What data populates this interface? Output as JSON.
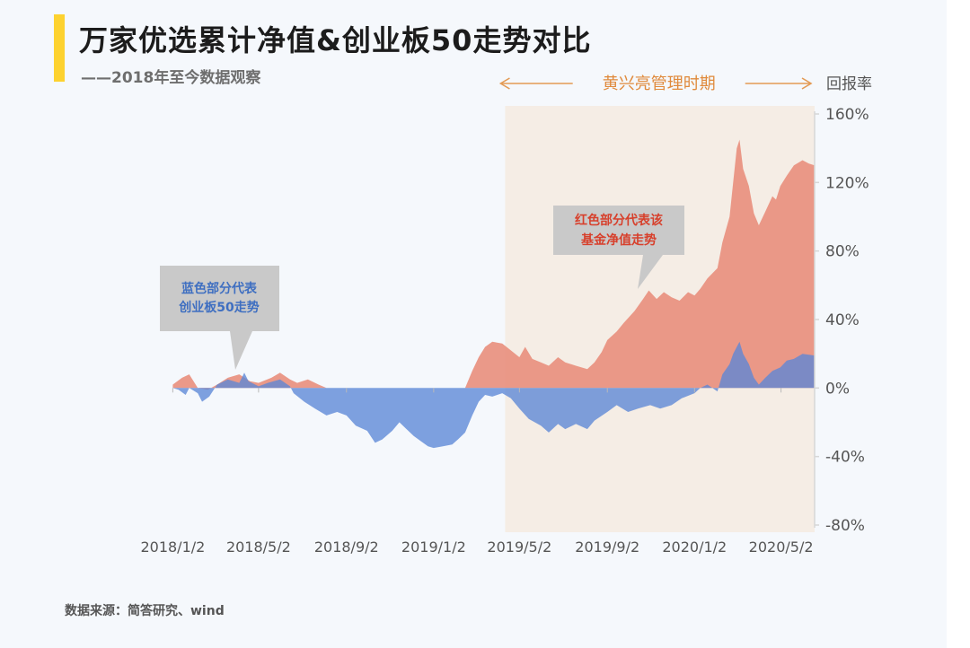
{
  "header": {
    "title": "万家优选累计净值&创业板50走势对比",
    "subtitle": "——2018年至今数据观察"
  },
  "footer": {
    "source": "数据来源：简答研究、wind"
  },
  "chart_data": {
    "type": "area",
    "ylabel": "回报率",
    "ylim": [
      -80,
      160
    ],
    "yticks": [
      160,
      120,
      80,
      40,
      0,
      -40,
      -80
    ],
    "ytick_labels": [
      "160%",
      "120%",
      "80%",
      "40%",
      "0%",
      "-40%",
      "-80%"
    ],
    "xlim": [
      "2017-12-30",
      "2020-06-18"
    ],
    "xtick_dates": [
      "2018-01-02",
      "2018-05-02",
      "2018-09-02",
      "2019-01-02",
      "2019-05-02",
      "2019-09-02",
      "2020-01-02",
      "2020-05-02"
    ],
    "xtick_labels": [
      "2018/1/2",
      "2018/5/2",
      "2018/9/2",
      "2019/1/2",
      "2019/5/2",
      "2019/9/2",
      "2020/1/2",
      "2020/5/2"
    ],
    "grid": false,
    "period_label": "黄兴亮管理时期",
    "highlight_period": [
      "2019-04-12",
      "2020-06-18"
    ],
    "annotations": [
      {
        "text": [
          "红色部分代表该",
          "基金净值走势"
        ],
        "color": "#d7402c"
      },
      {
        "text": [
          "蓝色部分代表",
          "创业板50走势"
        ],
        "color": "#3f6fc1"
      }
    ],
    "series": [
      {
        "color": "#e8907f",
        "points": [
          [
            "2018-01-02",
            2
          ],
          [
            "2018-01-15",
            6
          ],
          [
            "2018-01-25",
            8
          ],
          [
            "2018-02-06",
            0
          ],
          [
            "2018-02-20",
            -1
          ],
          [
            "2018-03-05",
            2
          ],
          [
            "2018-03-20",
            6
          ],
          [
            "2018-04-05",
            8
          ],
          [
            "2018-04-20",
            4
          ],
          [
            "2018-05-02",
            3
          ],
          [
            "2018-05-20",
            6
          ],
          [
            "2018-06-01",
            9
          ],
          [
            "2018-06-15",
            5
          ],
          [
            "2018-06-25",
            3
          ],
          [
            "2018-07-10",
            5
          ],
          [
            "2018-07-25",
            2
          ],
          [
            "2018-08-05",
            0
          ],
          [
            "2019-02-15",
            0
          ],
          [
            "2019-02-25",
            10
          ],
          [
            "2019-03-06",
            18
          ],
          [
            "2019-03-15",
            24
          ],
          [
            "2019-03-25",
            27
          ],
          [
            "2019-04-08",
            26
          ],
          [
            "2019-04-20",
            22
          ],
          [
            "2019-05-02",
            18
          ],
          [
            "2019-05-10",
            24
          ],
          [
            "2019-05-20",
            17
          ],
          [
            "2019-06-01",
            15
          ],
          [
            "2019-06-12",
            13
          ],
          [
            "2019-06-25",
            18
          ],
          [
            "2019-07-05",
            15
          ],
          [
            "2019-07-20",
            13
          ],
          [
            "2019-08-05",
            11
          ],
          [
            "2019-08-15",
            15
          ],
          [
            "2019-08-25",
            21
          ],
          [
            "2019-09-02",
            28
          ],
          [
            "2019-09-15",
            33
          ],
          [
            "2019-09-25",
            38
          ],
          [
            "2019-10-10",
            45
          ],
          [
            "2019-10-22",
            52
          ],
          [
            "2019-10-30",
            57
          ],
          [
            "2019-11-10",
            52
          ],
          [
            "2019-11-20",
            56
          ],
          [
            "2019-12-01",
            53
          ],
          [
            "2019-12-12",
            51
          ],
          [
            "2019-12-24",
            56
          ],
          [
            "2020-01-02",
            54
          ],
          [
            "2020-01-10",
            58
          ],
          [
            "2020-01-20",
            64
          ],
          [
            "2020-02-03",
            70
          ],
          [
            "2020-02-10",
            85
          ],
          [
            "2020-02-20",
            100
          ],
          [
            "2020-02-25",
            120
          ],
          [
            "2020-03-01",
            140
          ],
          [
            "2020-03-05",
            145
          ],
          [
            "2020-03-10",
            128
          ],
          [
            "2020-03-18",
            118
          ],
          [
            "2020-03-25",
            102
          ],
          [
            "2020-04-01",
            95
          ],
          [
            "2020-04-10",
            103
          ],
          [
            "2020-04-20",
            112
          ],
          [
            "2020-04-25",
            110
          ],
          [
            "2020-05-01",
            118
          ],
          [
            "2020-05-10",
            124
          ],
          [
            "2020-05-20",
            130
          ],
          [
            "2020-06-01",
            133
          ],
          [
            "2020-06-10",
            131
          ],
          [
            "2020-06-18",
            130
          ]
        ]
      },
      {
        "color": "#5b86d6",
        "points": [
          [
            "2018-01-02",
            0
          ],
          [
            "2018-01-10",
            -1
          ],
          [
            "2018-01-20",
            -4
          ],
          [
            "2018-01-25",
            0
          ],
          [
            "2018-02-06",
            -3
          ],
          [
            "2018-02-12",
            -8
          ],
          [
            "2018-02-22",
            -5
          ],
          [
            "2018-03-05",
            2
          ],
          [
            "2018-03-20",
            5
          ],
          [
            "2018-04-05",
            3
          ],
          [
            "2018-04-12",
            9
          ],
          [
            "2018-04-18",
            4
          ],
          [
            "2018-05-02",
            1
          ],
          [
            "2018-05-15",
            3
          ],
          [
            "2018-06-01",
            5
          ],
          [
            "2018-06-15",
            1
          ],
          [
            "2018-06-20",
            -3
          ],
          [
            "2018-07-05",
            -8
          ],
          [
            "2018-07-20",
            -12
          ],
          [
            "2018-08-05",
            -16
          ],
          [
            "2018-08-20",
            -14
          ],
          [
            "2018-09-02",
            -16
          ],
          [
            "2018-09-15",
            -22
          ],
          [
            "2018-10-01",
            -25
          ],
          [
            "2018-10-12",
            -32
          ],
          [
            "2018-10-22",
            -30
          ],
          [
            "2018-11-05",
            -25
          ],
          [
            "2018-11-15",
            -20
          ],
          [
            "2018-11-25",
            -24
          ],
          [
            "2018-12-05",
            -28
          ],
          [
            "2018-12-15",
            -31
          ],
          [
            "2018-12-25",
            -34
          ],
          [
            "2019-01-02",
            -35
          ],
          [
            "2019-01-15",
            -34
          ],
          [
            "2019-01-28",
            -33
          ],
          [
            "2019-02-05",
            -30
          ],
          [
            "2019-02-15",
            -26
          ],
          [
            "2019-02-25",
            -16
          ],
          [
            "2019-03-06",
            -8
          ],
          [
            "2019-03-15",
            -4
          ],
          [
            "2019-03-25",
            -5
          ],
          [
            "2019-04-08",
            -3
          ],
          [
            "2019-04-20",
            -6
          ],
          [
            "2019-05-02",
            -12
          ],
          [
            "2019-05-15",
            -18
          ],
          [
            "2019-06-01",
            -22
          ],
          [
            "2019-06-12",
            -26
          ],
          [
            "2019-06-25",
            -21
          ],
          [
            "2019-07-05",
            -24
          ],
          [
            "2019-07-20",
            -21
          ],
          [
            "2019-08-05",
            -24
          ],
          [
            "2019-08-15",
            -19
          ],
          [
            "2019-09-02",
            -14
          ],
          [
            "2019-09-15",
            -10
          ],
          [
            "2019-10-01",
            -14
          ],
          [
            "2019-10-15",
            -12
          ],
          [
            "2019-11-01",
            -10
          ],
          [
            "2019-11-15",
            -12
          ],
          [
            "2019-12-01",
            -10
          ],
          [
            "2019-12-15",
            -6
          ],
          [
            "2020-01-02",
            -3
          ],
          [
            "2020-01-10",
            0
          ],
          [
            "2020-01-20",
            2
          ],
          [
            "2020-02-03",
            -2
          ],
          [
            "2020-02-10",
            8
          ],
          [
            "2020-02-20",
            14
          ],
          [
            "2020-02-25",
            20
          ],
          [
            "2020-03-01",
            24
          ],
          [
            "2020-03-05",
            27
          ],
          [
            "2020-03-10",
            20
          ],
          [
            "2020-03-18",
            14
          ],
          [
            "2020-03-25",
            6
          ],
          [
            "2020-04-01",
            2
          ],
          [
            "2020-04-10",
            6
          ],
          [
            "2020-04-20",
            10
          ],
          [
            "2020-05-01",
            12
          ],
          [
            "2020-05-10",
            16
          ],
          [
            "2020-05-20",
            17
          ],
          [
            "2020-06-01",
            20
          ],
          [
            "2020-06-18",
            19
          ]
        ]
      }
    ]
  }
}
